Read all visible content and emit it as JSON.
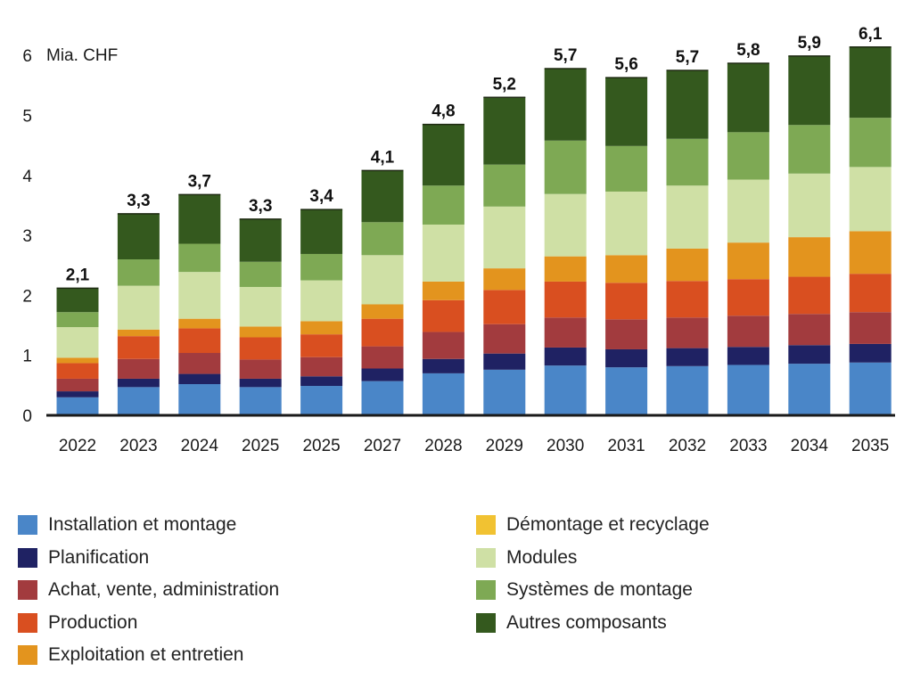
{
  "chart_data": {
    "type": "bar",
    "stacked": true,
    "title": "",
    "ylabel": "Mia. CHF",
    "xlabel": "",
    "ylim": [
      0,
      6.2
    ],
    "yticks": [
      "0",
      "1",
      "2",
      "3",
      "4",
      "5",
      "6"
    ],
    "categories": [
      "2022",
      "2023",
      "2024",
      "2025",
      "2025",
      "2027",
      "2028",
      "2029",
      "2030",
      "2031",
      "2032",
      "2033",
      "2034",
      "2035"
    ],
    "totals_labels": [
      "2,1",
      "3,3",
      "3,7",
      "3,3",
      "3,4",
      "4,1",
      "4,8",
      "5,2",
      "5,7",
      "5,6",
      "5,7",
      "5,8",
      "5,9",
      "6,1"
    ],
    "series": [
      {
        "name": "Installation et montage",
        "color": "#4a86c8",
        "values": [
          0.3,
          0.47,
          0.52,
          0.47,
          0.49,
          0.57,
          0.7,
          0.76,
          0.83,
          0.8,
          0.82,
          0.84,
          0.86,
          0.88
        ]
      },
      {
        "name": "Planification",
        "color": "#1f2263",
        "values": [
          0.1,
          0.14,
          0.17,
          0.14,
          0.16,
          0.21,
          0.24,
          0.27,
          0.3,
          0.3,
          0.3,
          0.3,
          0.31,
          0.31
        ]
      },
      {
        "name": "Achat, vente, administration",
        "color": "#a23b3e",
        "values": [
          0.21,
          0.33,
          0.35,
          0.32,
          0.32,
          0.37,
          0.45,
          0.49,
          0.5,
          0.5,
          0.51,
          0.52,
          0.52,
          0.53
        ]
      },
      {
        "name": "Production",
        "color": "#d94f20",
        "values": [
          0.26,
          0.38,
          0.41,
          0.37,
          0.38,
          0.46,
          0.53,
          0.57,
          0.6,
          0.61,
          0.61,
          0.61,
          0.62,
          0.64
        ]
      },
      {
        "name": "Exploitation et entretien",
        "color": "#e3941e",
        "values": [
          0.09,
          0.11,
          0.16,
          0.18,
          0.22,
          0.24,
          0.31,
          0.36,
          0.42,
          0.46,
          0.54,
          0.61,
          0.66,
          0.71
        ]
      },
      {
        "name": "Démontage et recyclage",
        "color": "#f1c232",
        "values": [
          0,
          0,
          0,
          0,
          0,
          0,
          0,
          0,
          0,
          0,
          0,
          0,
          0,
          0
        ]
      },
      {
        "name": "Modules",
        "color": "#cfe0a5",
        "values": [
          0.51,
          0.73,
          0.78,
          0.66,
          0.68,
          0.82,
          0.95,
          1.03,
          1.04,
          1.06,
          1.05,
          1.05,
          1.06,
          1.07
        ]
      },
      {
        "name": "Systèmes de montage",
        "color": "#7ea954",
        "values": [
          0.25,
          0.44,
          0.47,
          0.42,
          0.44,
          0.55,
          0.65,
          0.7,
          0.89,
          0.76,
          0.78,
          0.79,
          0.81,
          0.82
        ]
      },
      {
        "name": "Autres composants",
        "color": "#34591e",
        "values": [
          0.4,
          0.76,
          0.82,
          0.71,
          0.74,
          0.86,
          1.02,
          1.12,
          1.2,
          1.14,
          1.14,
          1.15,
          1.15,
          1.18
        ]
      }
    ],
    "legend_position": "bottom",
    "grid": false
  }
}
